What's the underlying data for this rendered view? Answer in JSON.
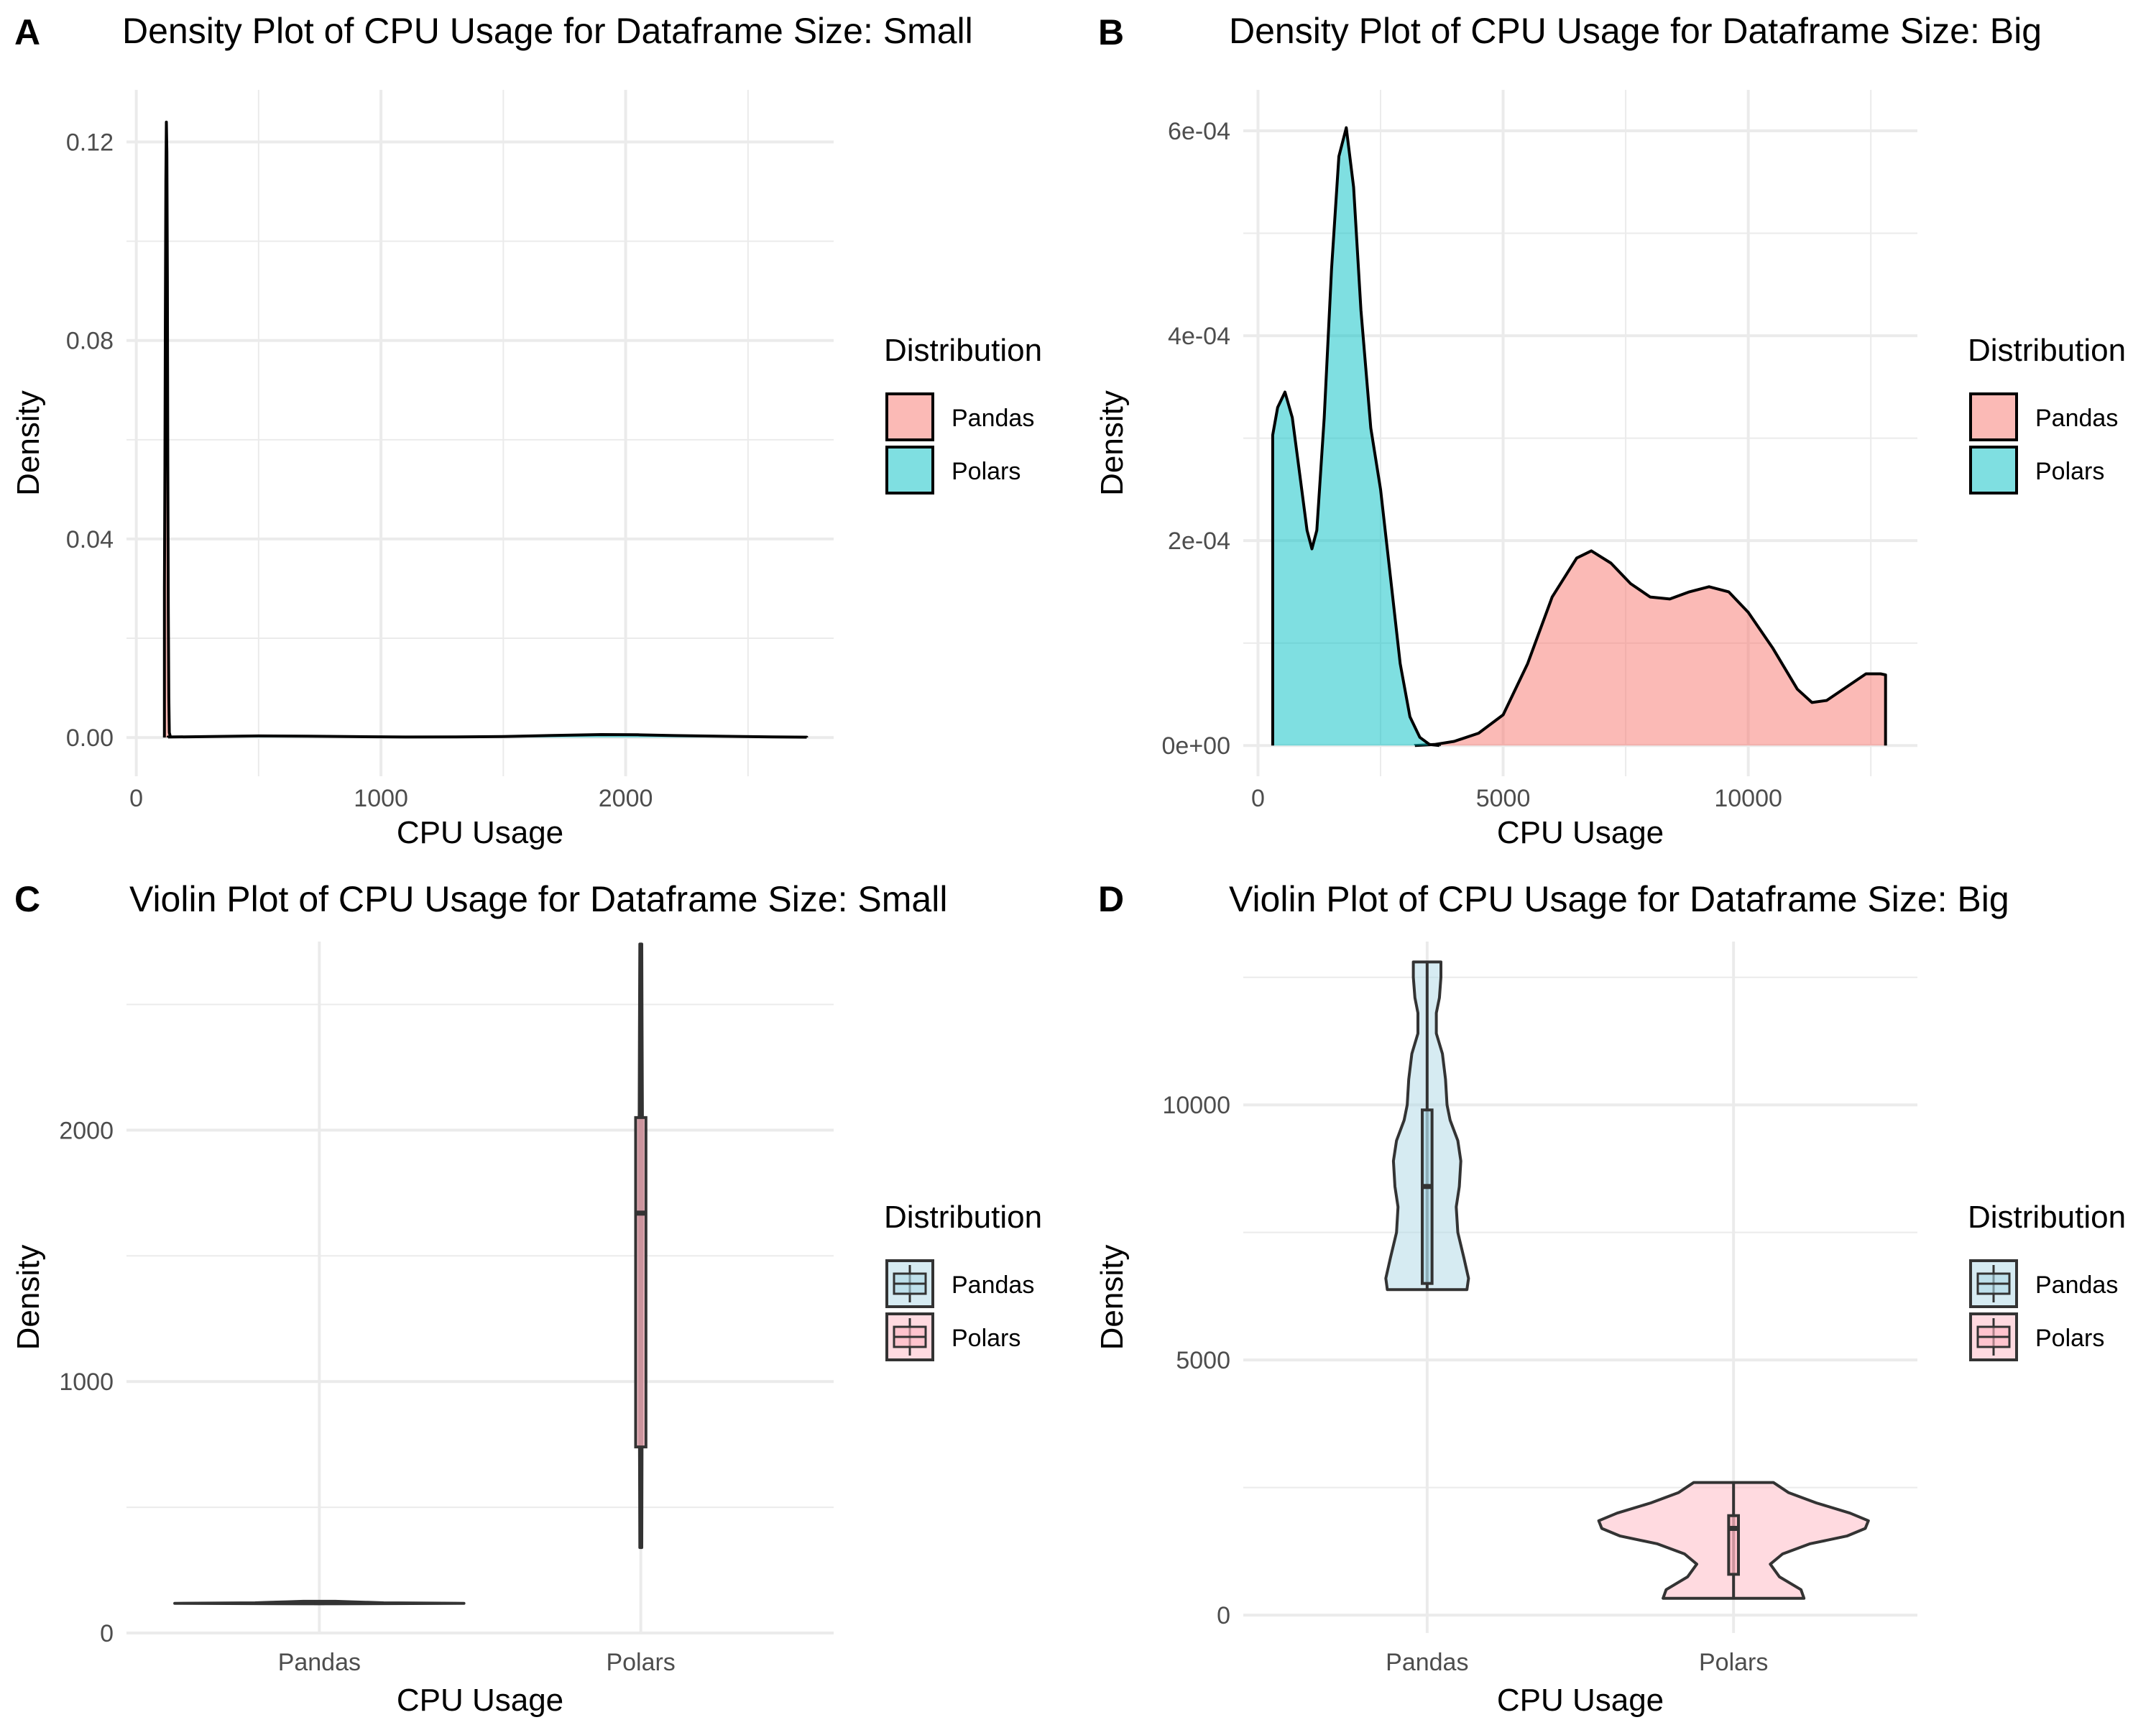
{
  "chart_data": [
    {
      "panel": "A",
      "type": "area",
      "title": "Density Plot of CPU Usage for Dataframe Size: Small",
      "xlabel": "CPU Usage",
      "ylabel": "Density",
      "xlim": [
        -40,
        2850
      ],
      "ylim": [
        -0.0078,
        0.1305
      ],
      "x_ticks": [
        0,
        1000,
        2000
      ],
      "x_tick_labels": [
        "0",
        "1000",
        "2000"
      ],
      "y_ticks": [
        0,
        0.04,
        0.08,
        0.12
      ],
      "y_tick_labels": [
        "0.00",
        "0.04",
        "0.08",
        "0.12"
      ],
      "grid": true,
      "legend": {
        "title": "Distribution",
        "position": "right",
        "entries": [
          "Pandas",
          "Polars"
        ]
      },
      "series": [
        {
          "name": "Pandas",
          "color": "#F8766D",
          "fill_opacity": 0.5,
          "x": [
            115,
            117,
            119,
            121,
            123,
            125,
            127,
            129,
            131,
            133,
            135,
            140
          ],
          "y": [
            0.03,
            0.055,
            0.085,
            0.112,
            0.124,
            0.118,
            0.092,
            0.055,
            0.025,
            0.008,
            0.001,
            0
          ]
        },
        {
          "name": "Polars",
          "color": "#00BFC4",
          "fill_opacity": 0.5,
          "x": [
            130,
            300,
            500,
            700,
            900,
            1100,
            1300,
            1500,
            1700,
            1900,
            2050,
            2200,
            2400,
            2600,
            2740
          ],
          "y": [
            0.0001,
            0.0002,
            0.00032,
            0.00028,
            0.00018,
            0.0001,
            0.00012,
            0.0002,
            0.00042,
            0.0006,
            0.00055,
            0.0004,
            0.00025,
            0.00012,
            8e-05
          ]
        }
      ]
    },
    {
      "panel": "B",
      "type": "area",
      "title": "Density Plot of CPU Usage for Dataframe Size: Big",
      "xlabel": "CPU Usage",
      "ylabel": "Density",
      "xlim": [
        -300,
        13450
      ],
      "ylim": [
        -3e-05,
        0.00064
      ],
      "x_ticks": [
        0,
        5000,
        10000
      ],
      "x_tick_labels": [
        "0",
        "5000",
        "10000"
      ],
      "y_ticks": [
        0,
        0.0002,
        0.0004,
        0.0006
      ],
      "y_tick_labels": [
        "0e+00",
        "2e-04",
        "4e-04",
        "6e-04"
      ],
      "grid": true,
      "legend": {
        "title": "Distribution",
        "position": "right",
        "entries": [
          "Pandas",
          "Polars"
        ]
      },
      "series": [
        {
          "name": "Pandas",
          "color": "#F8766D",
          "fill_opacity": 0.5,
          "x": [
            3200,
            3600,
            4000,
            4500,
            5000,
            5500,
            6000,
            6500,
            6800,
            7200,
            7600,
            8000,
            8400,
            8800,
            9200,
            9600,
            10000,
            10500,
            11000,
            11300,
            11600,
            12000,
            12400,
            12700,
            12800
          ],
          "y": [
            0,
            1e-06,
            4e-06,
            1.2e-05,
            3e-05,
            8e-05,
            0.000145,
            0.000183,
            0.00019,
            0.000178,
            0.000158,
            0.000145,
            0.000143,
            0.00015,
            0.000155,
            0.00015,
            0.00013,
            9.5e-05,
            5.5e-05,
            4.2e-05,
            4.4e-05,
            5.7e-05,
            7e-05,
            7e-05,
            6.9e-05
          ]
        },
        {
          "name": "Polars",
          "color": "#00BFC4",
          "fill_opacity": 0.5,
          "x": [
            300,
            400,
            550,
            700,
            850,
            1000,
            1100,
            1200,
            1350,
            1500,
            1650,
            1800,
            1950,
            2100,
            2300,
            2500,
            2700,
            2900,
            3100,
            3300,
            3500,
            3700
          ],
          "y": [
            0.000303,
            0.00033,
            0.000345,
            0.00032,
            0.000265,
            0.00021,
            0.000192,
            0.00021,
            0.00032,
            0.000465,
            0.000575,
            0.000603,
            0.000545,
            0.000425,
            0.00031,
            0.00025,
            0.000165,
            8e-05,
            2.8e-05,
            8e-06,
            1e-06,
            0
          ]
        }
      ]
    },
    {
      "panel": "C",
      "type": "violin",
      "title": "Violin Plot of CPU Usage for Dataframe Size: Small",
      "xlabel": "CPU Usage",
      "ylabel": "Density",
      "categories": [
        "Pandas",
        "Polars"
      ],
      "ylim": [
        0,
        2750
      ],
      "y_ticks": [
        0,
        1000,
        2000
      ],
      "y_tick_labels": [
        "0",
        "1000",
        "2000"
      ],
      "grid": true,
      "legend": {
        "title": "Distribution",
        "position": "right",
        "entries": [
          "Pandas",
          "Polars"
        ]
      },
      "series": [
        {
          "name": "Pandas",
          "color": "#ADD8E6",
          "fill_opacity": 0.5,
          "violin": {
            "y": [
              116,
              118,
              120,
              122,
              124,
              126
            ],
            "half_width": [
              0.05,
              0.45,
              0.2,
              0.15,
              0.1,
              0.05
            ]
          },
          "box": {
            "min": 116,
            "q1": 120,
            "median": 121,
            "q3": 123,
            "max": 126
          }
        },
        {
          "name": "Polars",
          "color": "#FFB6C1",
          "fill_opacity": 0.5,
          "violin": {
            "y": [
              340,
              800,
              1300,
              1700,
              2050,
              2400,
              2740
            ],
            "half_width": [
              0.003,
              0.004,
              0.004,
              0.005,
              0.005,
              0.004,
              0.003
            ]
          },
          "box": {
            "min": 340,
            "q1": 740,
            "median": 1670,
            "q3": 2050,
            "max": 2740
          }
        }
      ]
    },
    {
      "panel": "D",
      "type": "violin",
      "title": "Violin Plot of CPU Usage for Dataframe Size: Big",
      "xlabel": "CPU Usage",
      "ylabel": "Density",
      "categories": [
        "Pandas",
        "Polars"
      ],
      "ylim": [
        -350,
        13200
      ],
      "y_ticks": [
        0,
        5000,
        10000
      ],
      "y_tick_labels": [
        "0",
        "5000",
        "10000"
      ],
      "grid": true,
      "legend": {
        "title": "Distribution",
        "position": "right",
        "entries": [
          "Pandas",
          "Polars"
        ]
      },
      "series": [
        {
          "name": "Pandas",
          "color": "#ADD8E6",
          "fill_opacity": 0.5,
          "violin": {
            "y": [
              6380,
              6600,
              7000,
              7500,
              8000,
              8400,
              8900,
              9300,
              9700,
              10000,
              10500,
              11000,
              11400,
              11800,
              12100,
              12500,
              12800
            ],
            "half_width": [
              0.13,
              0.135,
              0.12,
              0.1,
              0.095,
              0.105,
              0.11,
              0.1,
              0.075,
              0.065,
              0.06,
              0.05,
              0.03,
              0.03,
              0.04,
              0.045,
              0.045
            ]
          },
          "box": {
            "min": 6380,
            "q1": 6500,
            "median": 8400,
            "q3": 9900,
            "max": 12800
          }
        },
        {
          "name": "Polars",
          "color": "#FFB6C1",
          "fill_opacity": 0.5,
          "violin": {
            "y": [
              330,
              500,
              750,
              1000,
              1200,
              1400,
              1550,
              1700,
              1850,
              2000,
              2200,
              2400,
              2600
            ],
            "half_width": [
              0.23,
              0.22,
              0.15,
              0.12,
              0.16,
              0.25,
              0.37,
              0.43,
              0.44,
              0.38,
              0.27,
              0.18,
              0.13
            ]
          },
          "box": {
            "min": 330,
            "q1": 800,
            "median": 1700,
            "q3": 1950,
            "max": 2600
          }
        }
      ]
    }
  ]
}
